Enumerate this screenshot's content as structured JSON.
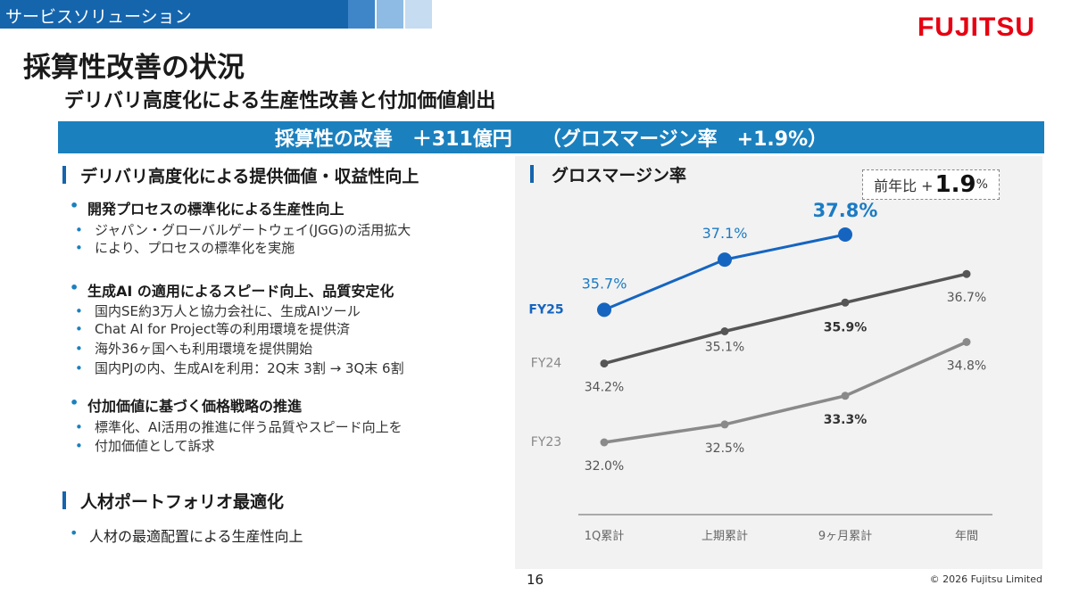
{
  "header": {
    "section_label": "サービスソリューション",
    "logo": "FUJITSU",
    "title": "採算性改善の状況",
    "subtitle": "デリバリ高度化による生産性改善と付加価値創出",
    "banner": "採算性の改善　＋311億円　　（グロスマージン率　+1.9%）"
  },
  "left": {
    "section1": {
      "heading": "デリバリ高度化による提供価値・収益性向上",
      "groups": [
        {
          "label": "開発プロセスの標準化による生産性向上",
          "items": [
            "ジャパン・グローバルゲートウェイ(JGG)の活用拡大",
            "により、プロセスの標準化を実施"
          ]
        },
        {
          "label": "生成AI の適用によるスピード向上、品質安定化",
          "items": [
            "国内SE約3万人と協力会社に、生成AIツール",
            "Chat AI for Project等の利用環境を提供済",
            "海外36ヶ国へも利用環境を提供開始",
            "国内PJの内、生成AIを利用：2Q末 3割 → 3Q末 6割"
          ]
        },
        {
          "label": "付加価値に基づく価格戦略の推進",
          "items": [
            "標準化、AI活用の推進に伴う品質やスピード向上を",
            "付加価値として訴求"
          ]
        }
      ]
    },
    "section2": {
      "heading": "人材ポートフォリオ最適化",
      "item": "人材の最適配置による生産性向上"
    }
  },
  "chart_panel": {
    "title": "グロスマージン率",
    "yoy_prefix": "前年比 +",
    "yoy_value": "1.9",
    "yoy_unit": "%"
  },
  "chart_data": {
    "type": "line",
    "title": "グロスマージン率",
    "categories": [
      "1Q累計",
      "上期累計",
      "9ヶ月累計",
      "年間"
    ],
    "series": [
      {
        "name": "FY25",
        "values": [
          35.7,
          37.1,
          37.8,
          null
        ],
        "labels": [
          "35.7%",
          "37.1%",
          "37.8%",
          null
        ],
        "color": "#1565c0"
      },
      {
        "name": "FY24",
        "values": [
          34.2,
          35.1,
          35.9,
          36.7
        ],
        "labels": [
          "34.2%",
          "35.1%",
          "35.9%",
          "36.7%"
        ],
        "color": "#555555"
      },
      {
        "name": "FY23",
        "values": [
          32.0,
          32.5,
          33.3,
          34.8
        ],
        "labels": [
          "32.0%",
          "32.5%",
          "33.3%",
          "34.8%"
        ],
        "color": "#8a8a8a"
      }
    ],
    "legend": "series names at left of lines",
    "grid": false
  },
  "footer": {
    "page": "16",
    "copyright": "© 2026 Fujitsu Limited"
  }
}
